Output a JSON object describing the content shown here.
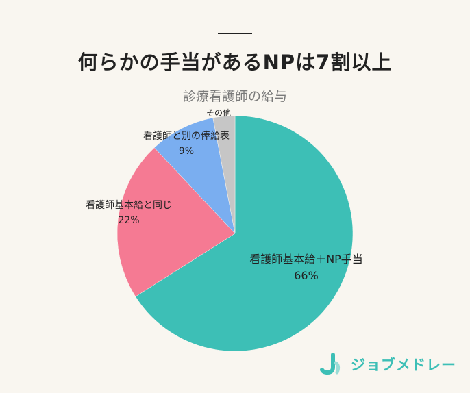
{
  "page": {
    "title": "何らかの手当があるNPは7割以上",
    "brand": "ジョブメドレー"
  },
  "chart_data": {
    "type": "pie",
    "title": "診療看護師の給与",
    "start_angle_deg": 0,
    "direction": "clockwise",
    "slices": [
      {
        "label": "看護師基本給＋NP手当",
        "value": 66,
        "value_label": "66%",
        "color": "#3dbfb6"
      },
      {
        "label": "看護師基本給と同じ",
        "value": 22,
        "value_label": "22%",
        "color": "#f57a93"
      },
      {
        "label": "看護師と別の俸給表",
        "value": 9,
        "value_label": "9%",
        "color": "#7aaef0"
      },
      {
        "label": "その他",
        "value": 3,
        "value_label": "",
        "color": "#c6c6c6"
      }
    ]
  }
}
